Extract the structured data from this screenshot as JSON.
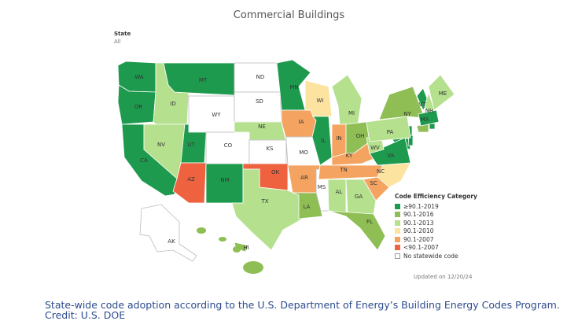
{
  "title": "Commercial Buildings",
  "filter": {
    "label": "State",
    "value": "All"
  },
  "legend": {
    "title": "Code Efficiency Category",
    "items": [
      {
        "label": "≥90.1-2019",
        "color": "#1e9a4f"
      },
      {
        "label": "90.1-2016",
        "color": "#8fbe55"
      },
      {
        "label": "90.1-2013",
        "color": "#b5e08e"
      },
      {
        "label": "90.1-2010",
        "color": "#fce4a0"
      },
      {
        "label": "90.1-2007",
        "color": "#f4a460"
      },
      {
        "label": "<90.1-2007",
        "color": "#ef6240"
      },
      {
        "label": "No statewide code",
        "color": "#ffffff"
      }
    ]
  },
  "states": [
    {
      "code": "WA",
      "category": "≥90.1-2019"
    },
    {
      "code": "OR",
      "category": "≥90.1-2019"
    },
    {
      "code": "CA",
      "category": "≥90.1-2019"
    },
    {
      "code": "ID",
      "category": "90.1-2013"
    },
    {
      "code": "NV",
      "category": "90.1-2013"
    },
    {
      "code": "MT",
      "category": "≥90.1-2019"
    },
    {
      "code": "WY",
      "category": "No statewide code"
    },
    {
      "code": "UT",
      "category": "≥90.1-2019"
    },
    {
      "code": "AZ",
      "category": "<90.1-2007"
    },
    {
      "code": "CO",
      "category": "No statewide code"
    },
    {
      "code": "NM",
      "category": "≥90.1-2019"
    },
    {
      "code": "ND",
      "category": "No statewide code"
    },
    {
      "code": "SD",
      "category": "No statewide code"
    },
    {
      "code": "NE",
      "category": "90.1-2013"
    },
    {
      "code": "KS",
      "category": "No statewide code"
    },
    {
      "code": "OK",
      "category": "<90.1-2007"
    },
    {
      "code": "TX",
      "category": "90.1-2013"
    },
    {
      "code": "MN",
      "category": "≥90.1-2019"
    },
    {
      "code": "IA",
      "category": "90.1-2007"
    },
    {
      "code": "MO",
      "category": "No statewide code"
    },
    {
      "code": "AR",
      "category": "90.1-2007"
    },
    {
      "code": "LA",
      "category": "90.1-2016"
    },
    {
      "code": "WI",
      "category": "90.1-2010"
    },
    {
      "code": "IL",
      "category": "≥90.1-2019"
    },
    {
      "code": "MS",
      "category": "No statewide code"
    },
    {
      "code": "MI",
      "category": "90.1-2013"
    },
    {
      "code": "IN",
      "category": "90.1-2007"
    },
    {
      "code": "OH",
      "category": "90.1-2016"
    },
    {
      "code": "KY",
      "category": "90.1-2007"
    },
    {
      "code": "TN",
      "category": "90.1-2007"
    },
    {
      "code": "AL",
      "category": "90.1-2013"
    },
    {
      "code": "GA",
      "category": "90.1-2013"
    },
    {
      "code": "FL",
      "category": "90.1-2016"
    },
    {
      "code": "SC",
      "category": "90.1-2007"
    },
    {
      "code": "NC",
      "category": "90.1-2010"
    },
    {
      "code": "VA",
      "category": "≥90.1-2019"
    },
    {
      "code": "WV",
      "category": "90.1-2013"
    },
    {
      "code": "PA",
      "category": "90.1-2013"
    },
    {
      "code": "NY",
      "category": "90.1-2016"
    },
    {
      "code": "VT",
      "category": "≥90.1-2019"
    },
    {
      "code": "NH",
      "category": "90.1-2013"
    },
    {
      "code": "ME",
      "category": "90.1-2013"
    },
    {
      "code": "MA",
      "category": "≥90.1-2019"
    },
    {
      "code": "AK",
      "category": "No statewide code"
    },
    {
      "code": "HI",
      "category": "90.1-2016"
    }
  ],
  "updated": "Updated on 12/20/24",
  "caption_line1": "State-wide code adoption according to the U.S. Department of Energy’s Building Energy Codes Program.",
  "caption_line2": "Credit: U.S. DOE"
}
